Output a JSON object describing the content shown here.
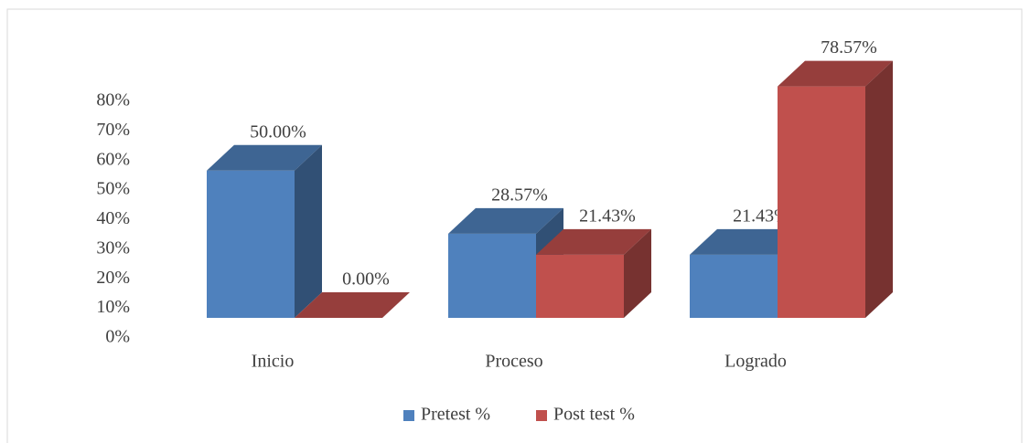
{
  "chart_data": {
    "type": "bar3d",
    "categories": [
      "Inicio",
      "Proceso",
      "Logrado"
    ],
    "series": [
      {
        "name": "Pretest %",
        "color": "#4f81bd",
        "values": [
          50,
          28.57,
          21.43
        ],
        "value_labels": [
          "50.00%",
          "28.57%",
          "21.43%"
        ]
      },
      {
        "name": "Post test %",
        "color": "#c0504d",
        "values": [
          0,
          21.43,
          78.57
        ],
        "value_labels": [
          "0.00%",
          "21.43%",
          "78.57%"
        ]
      }
    ],
    "ylim": [
      0,
      80
    ],
    "yticks": [
      {
        "value": 0,
        "label": "0%"
      },
      {
        "value": 10,
        "label": "10%"
      },
      {
        "value": 20,
        "label": "20%"
      },
      {
        "value": 30,
        "label": "30%"
      },
      {
        "value": 40,
        "label": "40%"
      },
      {
        "value": 50,
        "label": "50%"
      },
      {
        "value": 60,
        "label": "60%"
      },
      {
        "value": 70,
        "label": "70%"
      },
      {
        "value": 80,
        "label": "80%"
      }
    ],
    "legend": "bottom"
  }
}
